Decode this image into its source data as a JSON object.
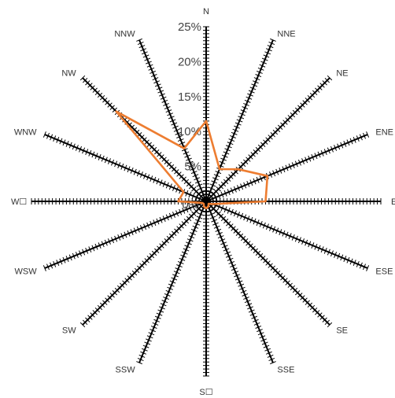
{
  "chart_data": {
    "type": "radar",
    "directions": [
      "N",
      "NNE",
      "NE",
      "ENE",
      "E",
      "ESE",
      "SE",
      "SSE",
      "S☐",
      "SSW",
      "SW",
      "WSW",
      "W☐",
      "WNW",
      "NW",
      "NNW"
    ],
    "radial_tick_labels": [
      "0%",
      "5%",
      "10%",
      "15%",
      "20%",
      "25%"
    ],
    "rmax": 25,
    "series": [
      {
        "values": [
          11.5,
          5.0,
          6.5,
          9.5,
          8.5,
          1.0,
          0.5,
          0.8,
          1.0,
          0.8,
          0.5,
          0.6,
          4.0,
          3.5,
          18.2,
          8.2
        ],
        "color": "#ED7D31"
      }
    ],
    "spoke_color": "#000000",
    "legend": "none",
    "grid": false
  }
}
